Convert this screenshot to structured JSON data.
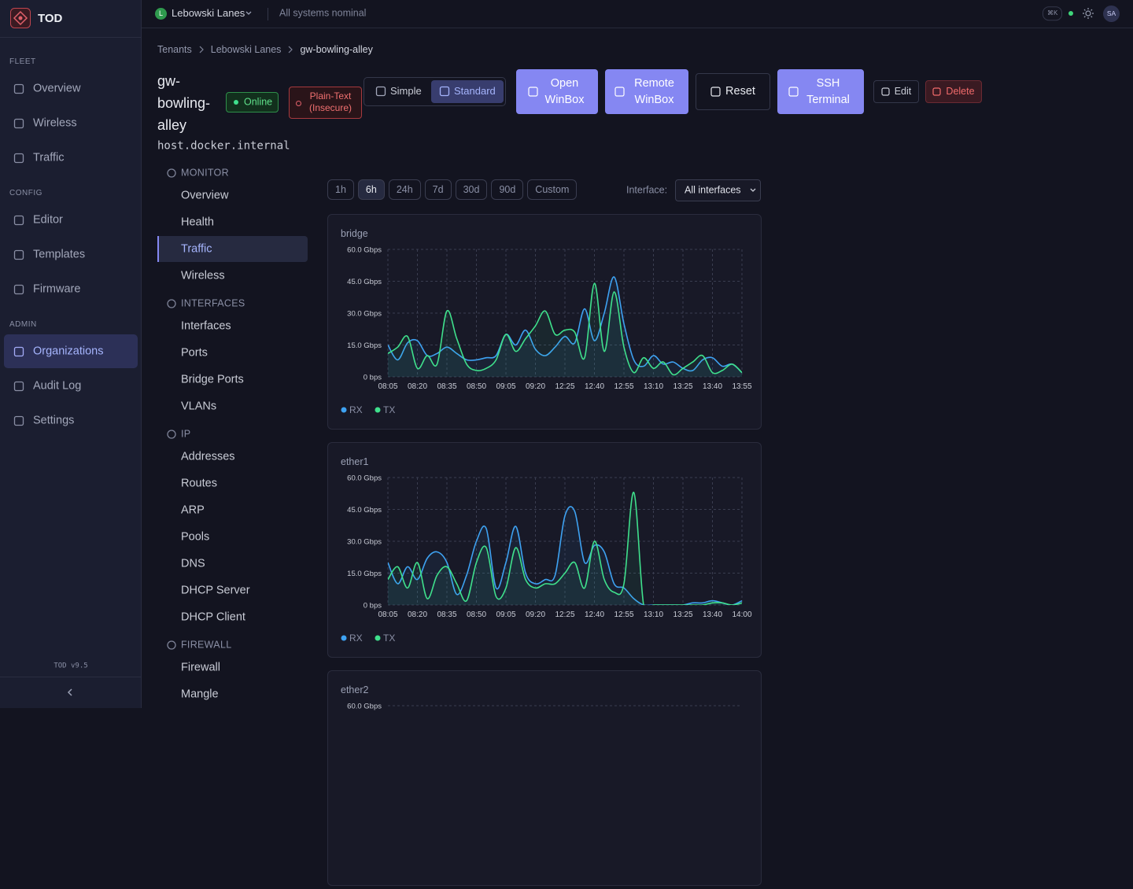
{
  "app": {
    "logo": "TOD",
    "version": "TOD v9.5"
  },
  "sidebar": {
    "sections": [
      {
        "label": "FLEET",
        "items": [
          "Overview",
          "Wireless",
          "Traffic"
        ]
      },
      {
        "label": "CONFIG",
        "items": [
          "Editor",
          "Templates",
          "Firmware"
        ]
      },
      {
        "label": "ADMIN",
        "items": [
          "Organizations",
          "Audit Log",
          "Settings"
        ],
        "active": 0
      }
    ]
  },
  "topbar": {
    "tenant_initial": "L",
    "tenant": "Lebowski Lanes",
    "status": "All systems nominal",
    "shortcut": "⌘K",
    "user": "SA"
  },
  "breadcrumb": [
    "Tenants",
    "Lebowski Lanes",
    "gw-bowling-alley"
  ],
  "device": {
    "name": "gw-bowling-alley",
    "host": "host.docker.internal",
    "status": "Online",
    "security": "Plain-Text (Insecure)"
  },
  "view_modes": {
    "options": [
      "Simple",
      "Standard"
    ],
    "active": 1
  },
  "actions": [
    "Open WinBox",
    "Remote WinBox",
    "Reset",
    "SSH Terminal",
    "Edit",
    "Delete"
  ],
  "subnav": [
    {
      "label": "MONITOR",
      "items": [
        "Overview",
        "Health",
        "Traffic",
        "Wireless"
      ],
      "active": 2
    },
    {
      "label": "INTERFACES",
      "items": [
        "Interfaces",
        "Ports",
        "Bridge Ports",
        "VLANs"
      ]
    },
    {
      "label": "IP",
      "items": [
        "Addresses",
        "Routes",
        "ARP",
        "Pools",
        "DNS",
        "DHCP Server",
        "DHCP Client"
      ]
    },
    {
      "label": "FIREWALL",
      "items": [
        "Firewall",
        "Mangle"
      ]
    }
  ],
  "time_ranges": {
    "options": [
      "1h",
      "6h",
      "24h",
      "7d",
      "30d",
      "90d",
      "Custom"
    ],
    "active": 1
  },
  "interface_filter": {
    "label": "Interface:",
    "value": "All interfaces"
  },
  "chart_data": [
    {
      "type": "line",
      "title": "bridge",
      "categories": [
        "08:05",
        null,
        null,
        "08:20",
        null,
        null,
        "08:35",
        null,
        null,
        "08:50",
        null,
        null,
        "09:05",
        null,
        null,
        "09:20",
        null,
        null,
        "12:25",
        null,
        null,
        "12:40",
        null,
        null,
        "12:55",
        null,
        null,
        "13:10",
        null,
        null,
        "13:25",
        null,
        null,
        "13:40",
        null,
        null,
        "13:55"
      ],
      "series": [
        {
          "name": "RX",
          "color": "#3ea2f2",
          "values": [
            15,
            8,
            16,
            17,
            10,
            11,
            14,
            11,
            8,
            8,
            9,
            10,
            20,
            15,
            22,
            13,
            10,
            14,
            19,
            16,
            32,
            17,
            30,
            47,
            25,
            8,
            5,
            10,
            6,
            7,
            4,
            3,
            8,
            9,
            5,
            6,
            2
          ]
        },
        {
          "name": "TX",
          "color": "#3fe08c",
          "values": [
            11,
            14,
            19,
            4,
            10,
            6,
            31,
            18,
            6,
            3,
            4,
            8,
            20,
            12,
            18,
            24,
            31,
            20,
            22,
            21,
            9,
            44,
            12,
            40,
            14,
            2,
            9,
            4,
            7,
            1,
            4,
            7,
            10,
            2,
            3,
            6,
            2
          ]
        }
      ],
      "ylim": [
        0,
        60
      ],
      "yticks": [
        {
          "value": 0,
          "label": "0 bps"
        },
        {
          "value": 15,
          "label": "15.0 Gbps"
        },
        {
          "value": 30,
          "label": "30.0 Gbps"
        },
        {
          "value": 45,
          "label": "45.0 Gbps"
        },
        {
          "value": 60,
          "label": "60.0 Gbps"
        }
      ],
      "grid": true,
      "legend": "bottom-left"
    },
    {
      "type": "line",
      "title": "ether1",
      "categories": [
        "08:05",
        null,
        null,
        "08:20",
        null,
        null,
        "08:35",
        null,
        null,
        "08:50",
        null,
        null,
        "09:05",
        null,
        null,
        "09:20",
        null,
        null,
        "12:25",
        null,
        null,
        "12:40",
        null,
        null,
        "12:55",
        null,
        null,
        "13:10",
        null,
        null,
        "13:25",
        null,
        null,
        "13:40",
        null,
        null,
        "14:00"
      ],
      "series": [
        {
          "name": "RX",
          "color": "#3ea2f2",
          "values": [
            20,
            10,
            18,
            12,
            22,
            25,
            20,
            5,
            14,
            30,
            36,
            8,
            20,
            37,
            15,
            10,
            12,
            14,
            42,
            44,
            20,
            28,
            25,
            10,
            8,
            3,
            0,
            0,
            0,
            0,
            0,
            1,
            1,
            2,
            1,
            0,
            2
          ]
        },
        {
          "name": "TX",
          "color": "#3fe08c",
          "values": [
            12,
            18,
            8,
            20,
            3,
            14,
            18,
            10,
            2,
            20,
            27,
            4,
            8,
            27,
            12,
            8,
            10,
            10,
            15,
            20,
            8,
            30,
            12,
            6,
            10,
            53,
            0,
            0,
            0,
            0,
            0,
            0,
            0,
            1,
            1,
            0,
            1
          ]
        }
      ],
      "ylim": [
        0,
        60
      ],
      "yticks": [
        {
          "value": 0,
          "label": "0 bps"
        },
        {
          "value": 15,
          "label": "15.0 Gbps"
        },
        {
          "value": 30,
          "label": "30.0 Gbps"
        },
        {
          "value": 45,
          "label": "45.0 Gbps"
        },
        {
          "value": 60,
          "label": "60.0 Gbps"
        }
      ],
      "grid": true,
      "legend": "bottom-left"
    },
    {
      "type": "line",
      "title": "ether2",
      "ylim": [
        0,
        60
      ],
      "yticks": [
        {
          "value": 60,
          "label": "60.0 Gbps"
        }
      ],
      "grid": true
    }
  ]
}
